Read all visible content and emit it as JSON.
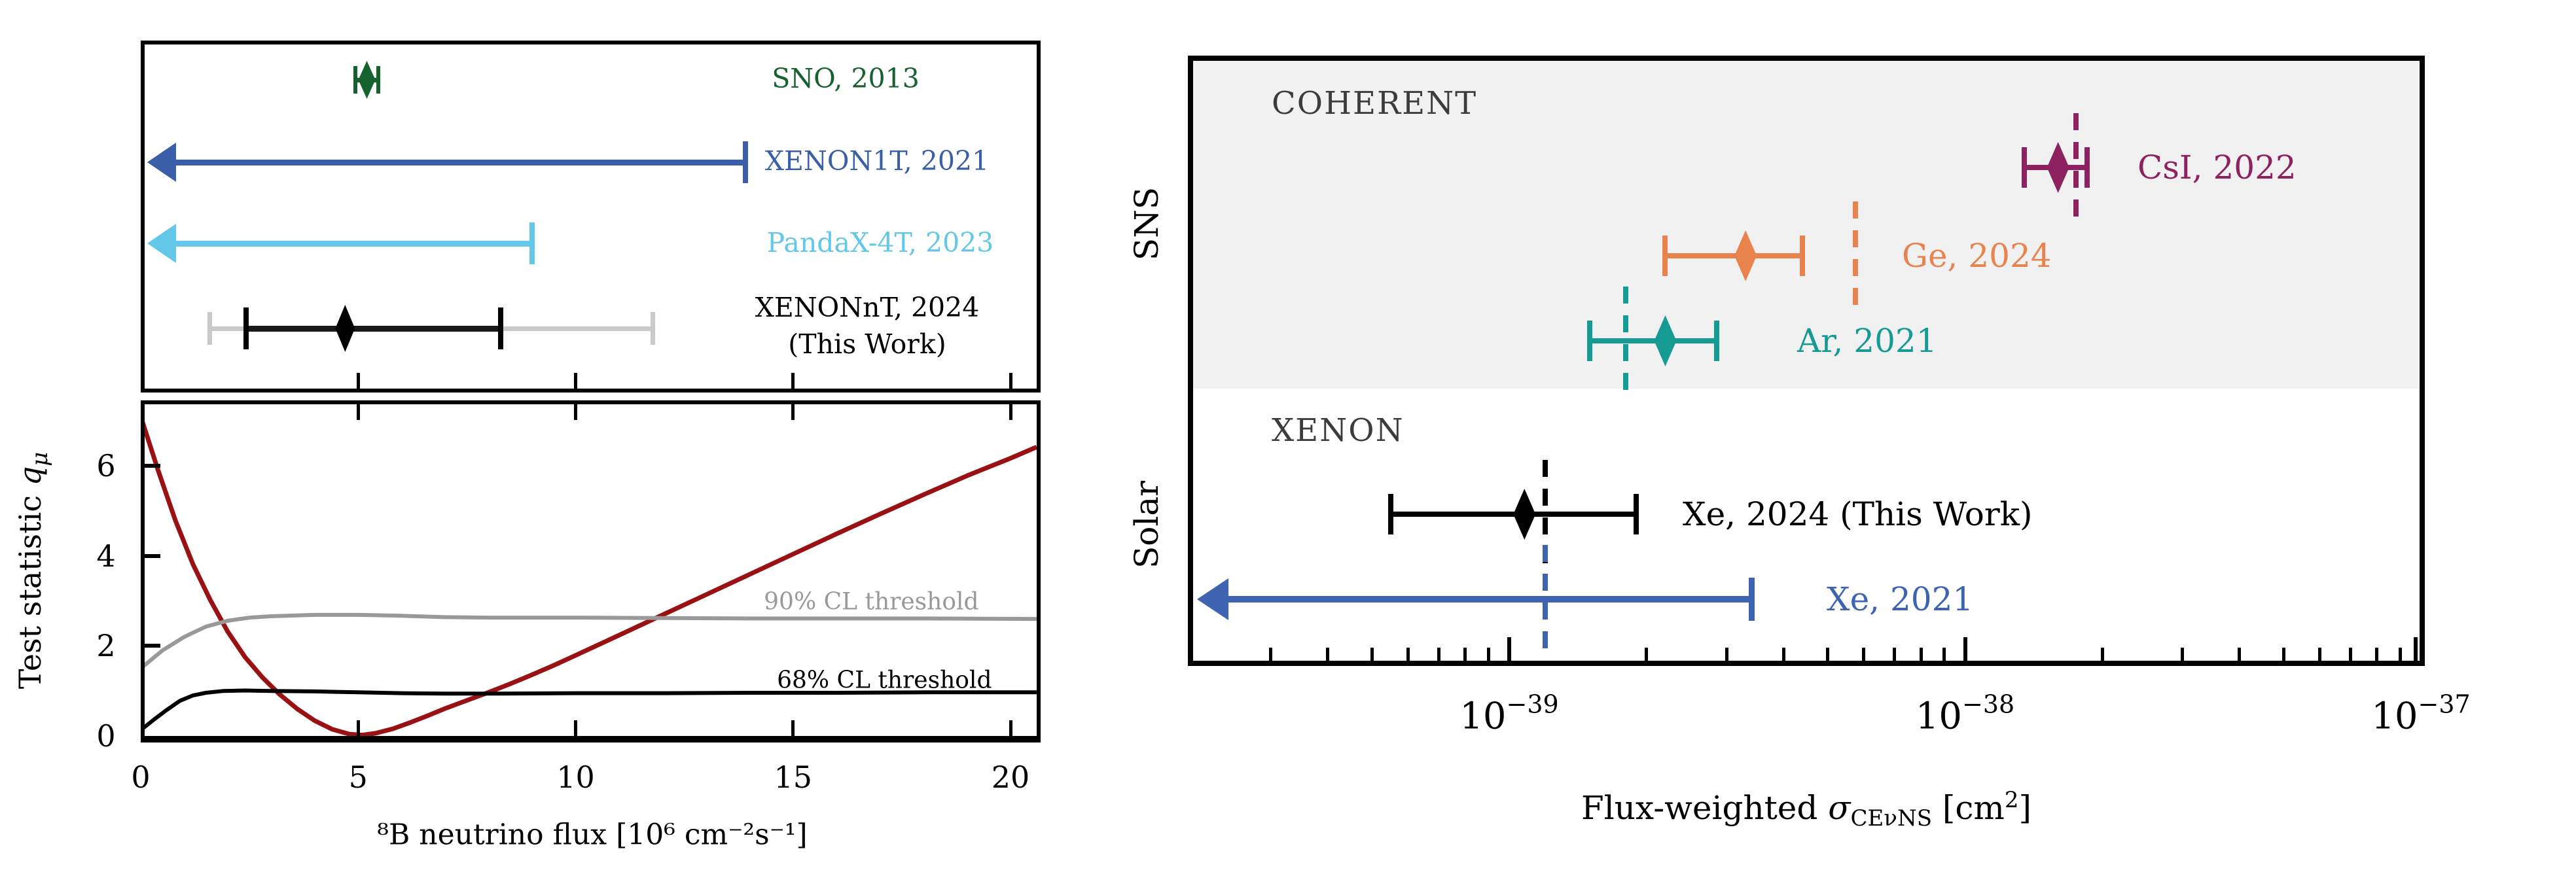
{
  "sections": {
    "coherent": "COHERENT",
    "xenon": "XENON",
    "sns": "SNS",
    "solar": "Solar"
  },
  "axis": {
    "left_ylabel_prefix": "Test statistic ",
    "left_ylabel_q": "q",
    "left_ylabel_sub": "μ",
    "left_xlabel": "⁸B neutrino flux [10⁶ cm⁻²s⁻¹]",
    "right_xlabel_prefix": "Flux-weighted ",
    "right_xlabel_sigma": "σ",
    "right_xlabel_sub": "CEνNS",
    "right_xlabel_mid": " [cm",
    "right_xlabel_sup": "2",
    "right_xlabel_end": "]"
  },
  "chart_data": [
    {
      "id": "left-top-measurements",
      "type": "scatter",
      "title": "",
      "xlabel": "⁸B neutrino flux [10⁶ cm⁻²s⁻¹]",
      "xlim": [
        0,
        20.6
      ],
      "xticks": [
        5,
        10,
        15,
        20
      ],
      "grid": false,
      "measurements": [
        {
          "label": "SNO, 2013",
          "color": "#15622e",
          "type": "measurement",
          "value": 5.2,
          "ci68": [
            4.93,
            5.47
          ]
        },
        {
          "label": "XENON1T, 2021",
          "color": "#3a5fa8",
          "type": "upper-limit",
          "limit": 13.9
        },
        {
          "label": "PandaX-4T, 2023",
          "color": "#63c7e9",
          "type": "upper-limit",
          "limit": 9.0
        },
        {
          "label": "XENONnT, 2024",
          "label2": "(This Work)",
          "color": "#1a1a1a",
          "outer_color": "#c9c9c9",
          "type": "measurement",
          "value": 4.7,
          "ci68": [
            2.43,
            8.27
          ],
          "ci90": [
            1.59,
            11.77
          ]
        }
      ]
    },
    {
      "id": "left-bottom-test-statistic",
      "type": "line",
      "ylabel": "Test statistic qμ",
      "xlabel": "⁸B neutrino flux [10⁶ cm⁻²s⁻¹]",
      "xlim": [
        0,
        20.6
      ],
      "ylim": [
        0,
        7.37
      ],
      "xticks": [
        0,
        5,
        10,
        15,
        20
      ],
      "yticks": [
        0,
        2,
        4,
        6
      ],
      "grid": false,
      "series": [
        {
          "name": "test-statistic-curve",
          "label": "",
          "color": "#9a1114",
          "width": 7,
          "points": [
            [
              0,
              7.1
            ],
            [
              0.4,
              5.9
            ],
            [
              0.8,
              4.78
            ],
            [
              1.2,
              3.82
            ],
            [
              1.6,
              3.02
            ],
            [
              2,
              2.32
            ],
            [
              2.4,
              1.75
            ],
            [
              2.8,
              1.3
            ],
            [
              3.2,
              0.92
            ],
            [
              3.6,
              0.6
            ],
            [
              4,
              0.34
            ],
            [
              4.4,
              0.15
            ],
            [
              4.8,
              0.04
            ],
            [
              5.1,
              0.02
            ],
            [
              5.4,
              0.06
            ],
            [
              5.8,
              0.16
            ],
            [
              6.2,
              0.3
            ],
            [
              6.6,
              0.45
            ],
            [
              7,
              0.61
            ],
            [
              7.5,
              0.79
            ],
            [
              8,
              0.97
            ],
            [
              8.5,
              1.16
            ],
            [
              9,
              1.36
            ],
            [
              9.5,
              1.57
            ],
            [
              10,
              1.79
            ],
            [
              11,
              2.24
            ],
            [
              12,
              2.69
            ],
            [
              13,
              3.14
            ],
            [
              14,
              3.59
            ],
            [
              15,
              4.04
            ],
            [
              16,
              4.49
            ],
            [
              17,
              4.93
            ],
            [
              18,
              5.36
            ],
            [
              19,
              5.78
            ],
            [
              20,
              6.17
            ],
            [
              20.6,
              6.42
            ]
          ]
        },
        {
          "name": "cl90-threshold",
          "label": "90% CL threshold",
          "color": "#999999",
          "width": 6,
          "label_pos": [
            16.8,
            2.98
          ],
          "points": [
            [
              0,
              1.5
            ],
            [
              0.5,
              1.9
            ],
            [
              1,
              2.2
            ],
            [
              1.5,
              2.43
            ],
            [
              2,
              2.56
            ],
            [
              2.5,
              2.63
            ],
            [
              3,
              2.66
            ],
            [
              4,
              2.69
            ],
            [
              5,
              2.69
            ],
            [
              6,
              2.67
            ],
            [
              7,
              2.64
            ],
            [
              8,
              2.63
            ],
            [
              10,
              2.63
            ],
            [
              12,
              2.62
            ],
            [
              14,
              2.61
            ],
            [
              16,
              2.61
            ],
            [
              18,
              2.61
            ],
            [
              20.6,
              2.6
            ]
          ]
        },
        {
          "name": "cl68-threshold",
          "label": "68% CL threshold",
          "color": "#000000",
          "width": 6,
          "label_pos": [
            17.1,
            1.24
          ],
          "points": [
            [
              0,
              0.13
            ],
            [
              0.3,
              0.36
            ],
            [
              0.6,
              0.58
            ],
            [
              0.9,
              0.78
            ],
            [
              1.2,
              0.9
            ],
            [
              1.5,
              0.96
            ],
            [
              1.9,
              1.0
            ],
            [
              2.4,
              1.01
            ],
            [
              3,
              1.0
            ],
            [
              4,
              0.99
            ],
            [
              5,
              0.97
            ],
            [
              6,
              0.95
            ],
            [
              7,
              0.94
            ],
            [
              8,
              0.94
            ],
            [
              10,
              0.95
            ],
            [
              12,
              0.95
            ],
            [
              14,
              0.96
            ],
            [
              16,
              0.96
            ],
            [
              18,
              0.97
            ],
            [
              20.6,
              0.97
            ]
          ]
        }
      ]
    },
    {
      "id": "right-cross-sections",
      "type": "scatter",
      "xlabel": "Flux-weighted σCEνNS [cm²]",
      "xscale": "log",
      "xlim": [
        2e-40,
        1e-37
      ],
      "xticks_major": [
        {
          "value": 1e-39,
          "base": "10",
          "exp": "−39"
        },
        {
          "value": 1e-38,
          "base": "10",
          "exp": "−38"
        },
        {
          "value": 1e-37,
          "base": "10",
          "exp": "−37"
        }
      ],
      "band_color": "#f2f1f1",
      "grid": false,
      "measurements": [
        {
          "band": "SNS",
          "label": "CsI, 2022",
          "color": "#8e2160",
          "type": "measurement",
          "value": 1.6e-38,
          "ci": [
            1.35e-38,
            1.85e-38
          ],
          "sm_prediction": 1.75e-38
        },
        {
          "band": "SNS",
          "label": "Ge, 2024",
          "color": "#e8834e",
          "type": "measurement",
          "value": 3.3e-39,
          "ci": [
            2.2e-39,
            4.4e-39
          ],
          "sm_prediction": 5.75e-39
        },
        {
          "band": "SNS",
          "label": "Ar, 2021",
          "color": "#169a94",
          "type": "measurement",
          "value": 2.2e-39,
          "ci": [
            1.5e-39,
            2.85e-39
          ],
          "sm_prediction": 1.8e-39
        },
        {
          "band": "Solar",
          "label": "Xe, 2024 (This Work)",
          "color": "#000000",
          "type": "measurement",
          "value": 1.08e-39,
          "ci": [
            5.5e-40,
            1.9e-39
          ],
          "sm_prediction": 1.2e-39
        },
        {
          "band": "Solar",
          "label": "Xe, 2021",
          "color": "#3e64b1",
          "type": "upper-limit",
          "limit": 3.4e-39,
          "sm_prediction": 1.2e-39
        }
      ]
    }
  ]
}
